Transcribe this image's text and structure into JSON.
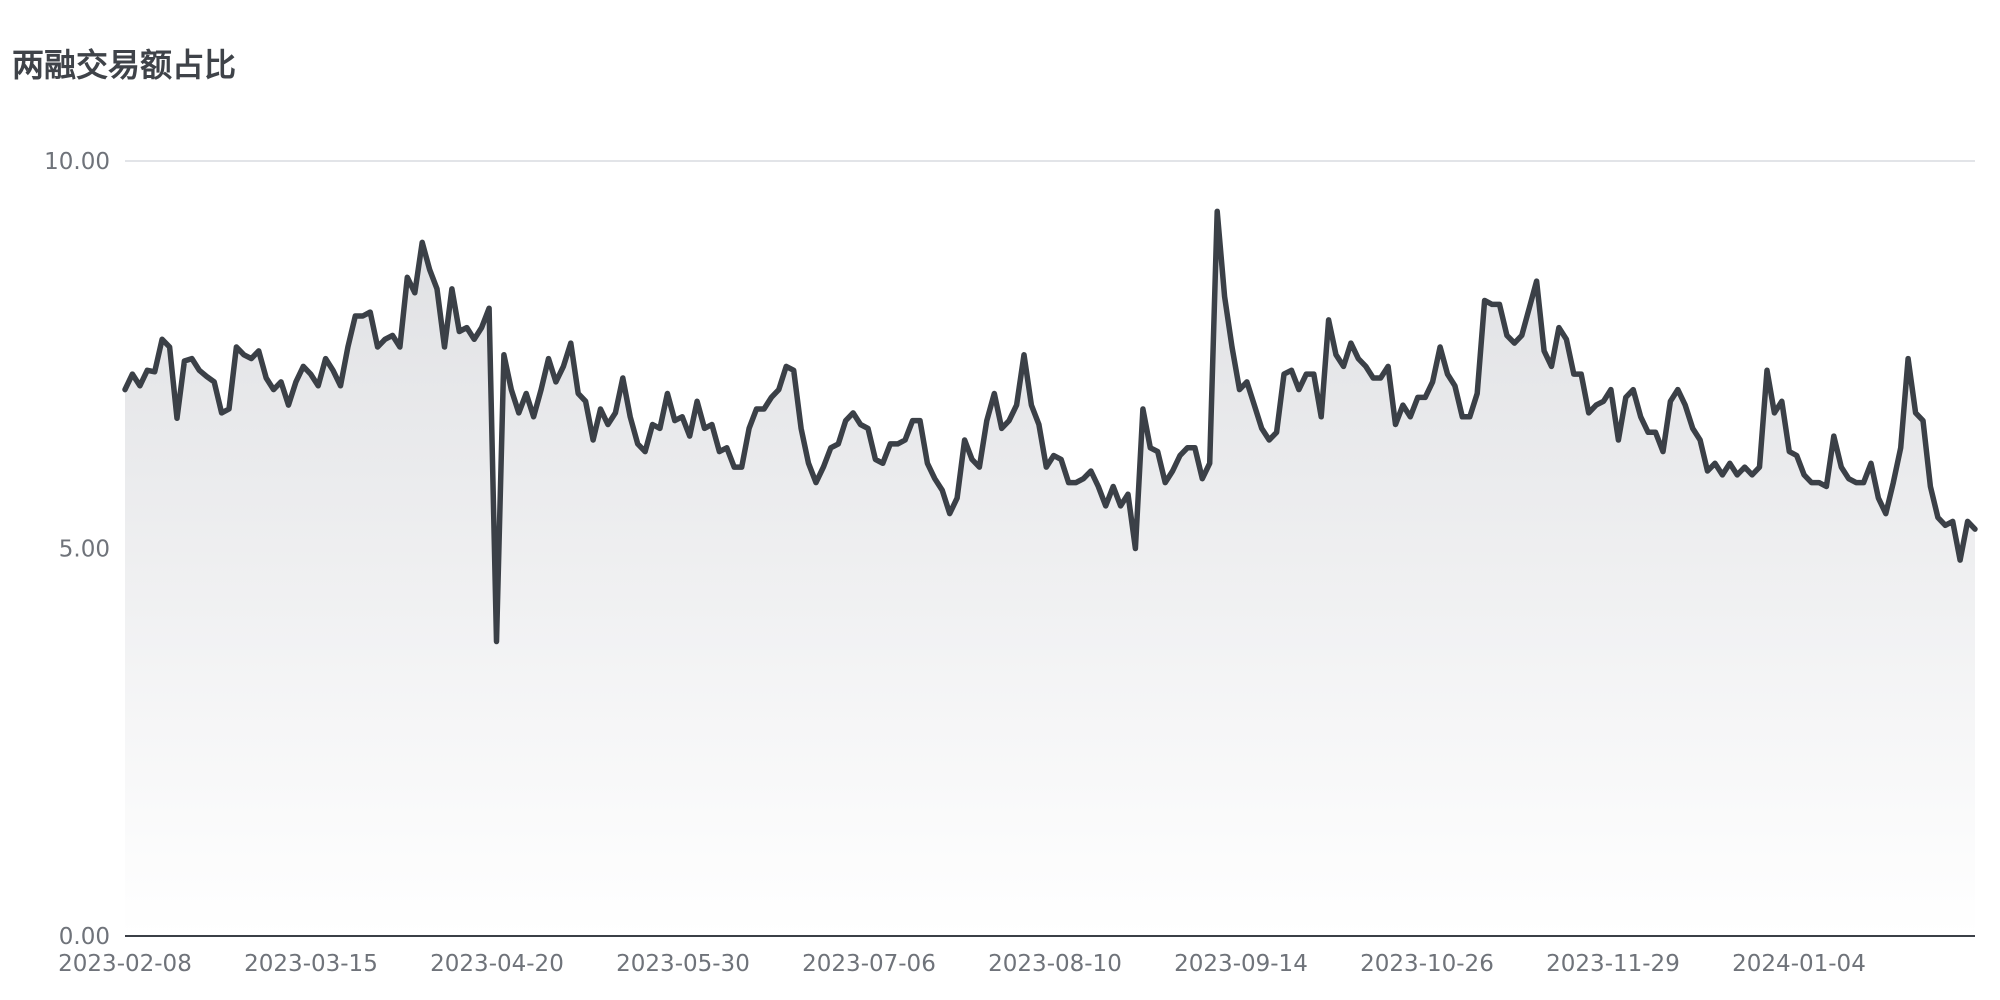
{
  "chart_data": {
    "type": "area",
    "title": "两融交易额占比",
    "xlabel": "",
    "ylabel": "",
    "ylim": [
      0,
      10
    ],
    "y_ticks": [
      "0.00",
      "5.00",
      "10.00"
    ],
    "x_ticks": [
      "2023-02-08",
      "2023-03-15",
      "2023-04-20",
      "2023-05-30",
      "2023-07-06",
      "2023-08-10",
      "2023-09-14",
      "2023-10-26",
      "2023-11-29",
      "2024-01-04"
    ],
    "grid": true,
    "legend": "none",
    "colors": {
      "line": "#3b4047",
      "fill_top": "#dfe0e3",
      "fill_bottom": "#ffffff",
      "grid": "#d9dbe0",
      "text": "#6f737a",
      "title": "#3f4349"
    },
    "series": [
      {
        "values": [
          7.05,
          7.25,
          7.1,
          7.3,
          7.28,
          7.7,
          7.6,
          6.68,
          7.42,
          7.45,
          7.3,
          7.22,
          7.15,
          6.75,
          6.8,
          7.6,
          7.5,
          7.45,
          7.55,
          7.2,
          7.05,
          7.15,
          6.85,
          7.15,
          7.35,
          7.25,
          7.1,
          7.45,
          7.3,
          7.1,
          7.6,
          8.0,
          8.0,
          8.05,
          7.6,
          7.7,
          7.75,
          7.6,
          8.5,
          8.3,
          8.95,
          8.6,
          8.35,
          7.6,
          8.35,
          7.8,
          7.85,
          7.7,
          7.85,
          8.1,
          3.8,
          7.5,
          7.05,
          6.75,
          7.0,
          6.7,
          7.05,
          7.45,
          7.15,
          7.35,
          7.65,
          7.0,
          6.9,
          6.4,
          6.8,
          6.6,
          6.75,
          7.2,
          6.7,
          6.35,
          6.25,
          6.6,
          6.55,
          7.0,
          6.65,
          6.7,
          6.45,
          6.9,
          6.55,
          6.6,
          6.25,
          6.3,
          6.05,
          6.05,
          6.55,
          6.8,
          6.8,
          6.95,
          7.05,
          7.35,
          7.3,
          6.55,
          6.1,
          5.85,
          6.05,
          6.3,
          6.35,
          6.65,
          6.75,
          6.6,
          6.55,
          6.15,
          6.1,
          6.35,
          6.35,
          6.4,
          6.65,
          6.65,
          6.1,
          5.9,
          5.75,
          5.45,
          5.65,
          6.4,
          6.15,
          6.05,
          6.65,
          7.0,
          6.55,
          6.65,
          6.85,
          7.5,
          6.85,
          6.6,
          6.05,
          6.2,
          6.15,
          5.85,
          5.85,
          5.9,
          6.0,
          5.8,
          5.55,
          5.8,
          5.55,
          5.7,
          5.0,
          6.8,
          6.3,
          6.25,
          5.85,
          6.0,
          6.2,
          6.3,
          6.3,
          5.9,
          6.1,
          9.35,
          8.25,
          7.6,
          7.05,
          7.15,
          6.85,
          6.55,
          6.4,
          6.5,
          7.25,
          7.3,
          7.05,
          7.25,
          7.25,
          6.7,
          7.95,
          7.5,
          7.35,
          7.65,
          7.45,
          7.35,
          7.2,
          7.2,
          7.35,
          6.6,
          6.85,
          6.7,
          6.95,
          6.95,
          7.15,
          7.6,
          7.25,
          7.1,
          6.7,
          6.7,
          7.0,
          8.2,
          8.15,
          8.15,
          7.75,
          7.65,
          7.75,
          8.1,
          8.45,
          7.55,
          7.35,
          7.85,
          7.7,
          7.25,
          7.25,
          6.75,
          6.85,
          6.9,
          7.05,
          6.4,
          6.95,
          7.05,
          6.7,
          6.5,
          6.5,
          6.25,
          6.9,
          7.05,
          6.85,
          6.55,
          6.4,
          6.0,
          6.1,
          5.95,
          6.1,
          5.95,
          6.05,
          5.95,
          6.05,
          7.3,
          6.75,
          6.9,
          6.25,
          6.2,
          5.95,
          5.85,
          5.85,
          5.8,
          6.45,
          6.05,
          5.9,
          5.85,
          5.85,
          6.1,
          5.65,
          5.45,
          5.85,
          6.3,
          7.45,
          6.75,
          6.65,
          5.8,
          5.4,
          5.3,
          5.35,
          4.85,
          5.35,
          5.25
        ]
      }
    ]
  }
}
